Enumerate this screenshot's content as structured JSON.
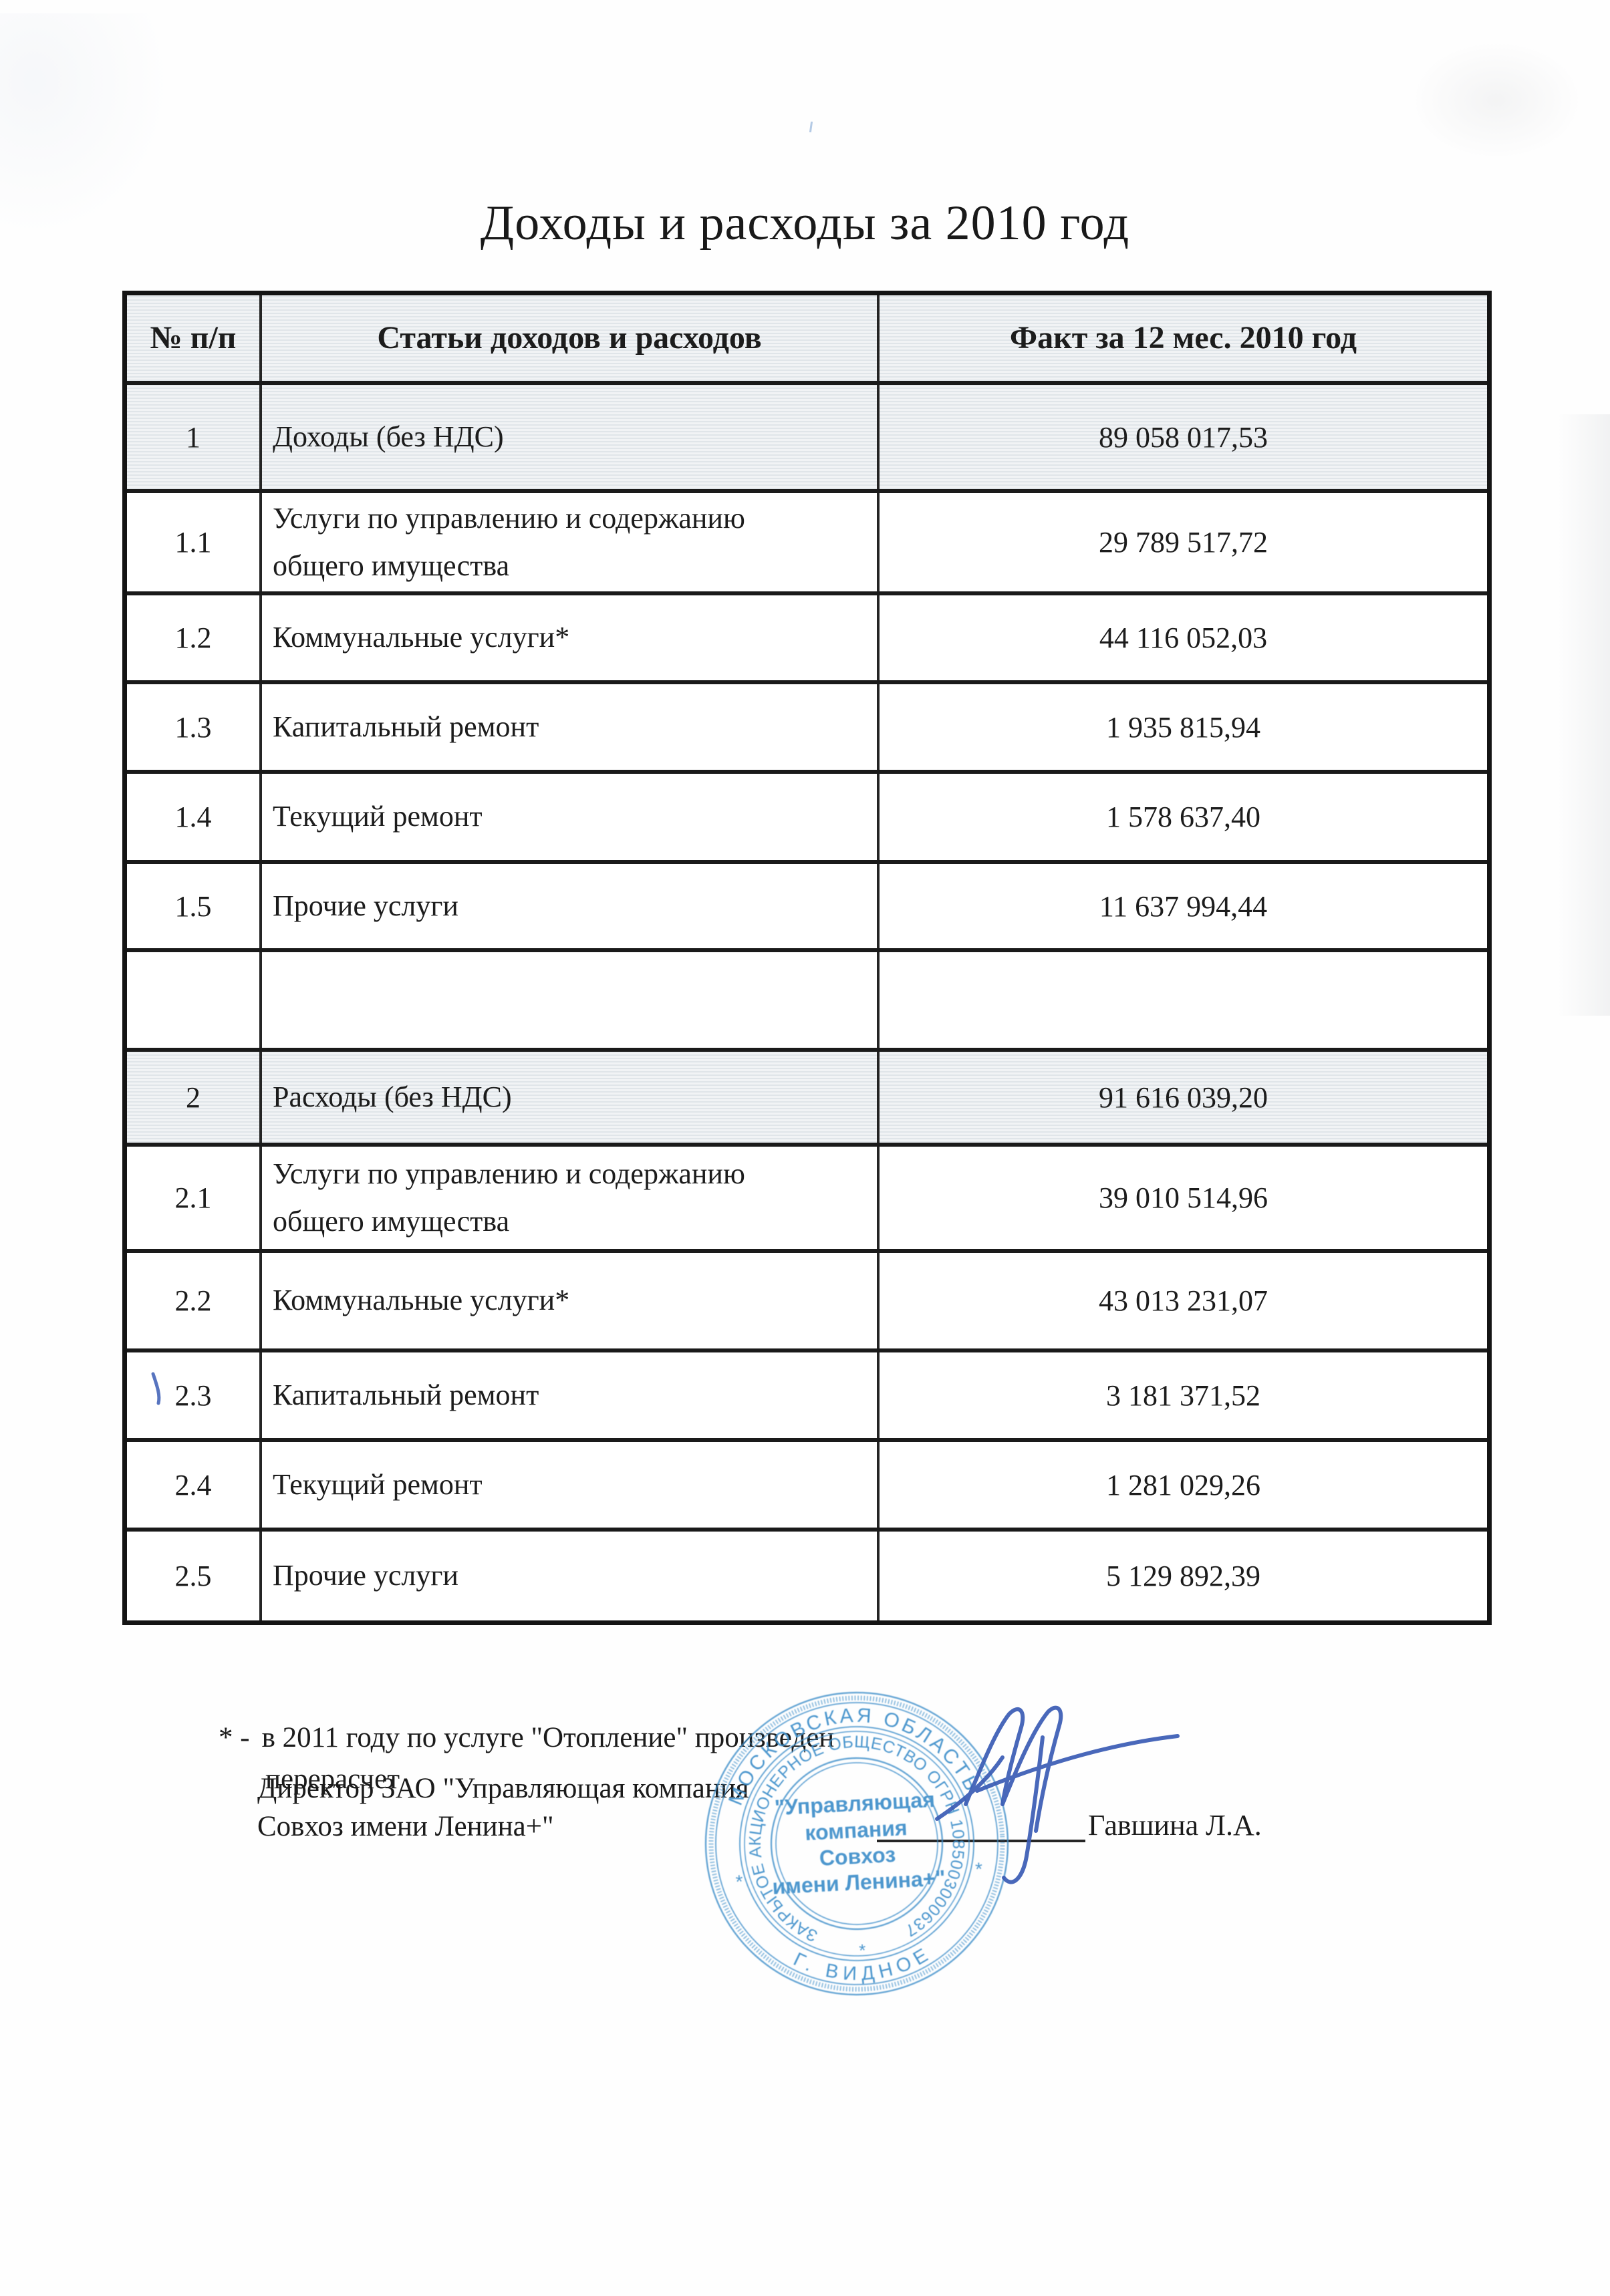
{
  "page": {
    "title": "Доходы и расходы за 2010 год"
  },
  "table": {
    "headers": [
      "№ п/п",
      "Статьи доходов и расходов",
      "Факт за 12 мес. 2010 год"
    ],
    "rows": [
      {
        "num": "1",
        "label": "Доходы (без НДС)",
        "value": "89 058 017,53",
        "section": true
      },
      {
        "num": "1.1",
        "label": "Услуги по управлению и содержанию общего имущества",
        "value": "29 789 517,72",
        "section": false
      },
      {
        "num": "1.2",
        "label": "Коммунальные услуги*",
        "value": "44 116 052,03",
        "section": false
      },
      {
        "num": "1.3",
        "label": "Капитальный ремонт",
        "value": "1 935 815,94",
        "section": false
      },
      {
        "num": "1.4",
        "label": "Текущий ремонт",
        "value": "1 578 637,40",
        "section": false
      },
      {
        "num": "1.5",
        "label": "Прочие услуги",
        "value": "11 637 994,44",
        "section": false
      },
      {
        "num": "",
        "label": "",
        "value": "",
        "section": false
      },
      {
        "num": "2",
        "label": "Расходы (без НДС)",
        "value": "91 616 039,20",
        "section": true
      },
      {
        "num": "2.1",
        "label": "Услуги по управлению и содержанию общего имущества",
        "value": "39 010 514,96",
        "section": false
      },
      {
        "num": "2.2",
        "label": "Коммунальные услуги*",
        "value": "43 013 231,07",
        "section": false
      },
      {
        "num": "2.3",
        "label": "Капитальный ремонт",
        "value": "3 181 371,52",
        "section": false
      },
      {
        "num": "2.4",
        "label": "Текущий ремонт",
        "value": "1 281 029,26",
        "section": false
      },
      {
        "num": "2.5",
        "label": "Прочие услуги",
        "value": "5 129 892,39",
        "section": false
      }
    ]
  },
  "footnote": {
    "marker": "* -",
    "line1": "в 2011 году по услуге \"Отопление\" произведен",
    "line2": "перерасчет"
  },
  "signature": {
    "line1": "Директор ЗАО \"Управляющая компания",
    "line2": "Совхоз имени Ленина+\"",
    "name": "Гавшина Л.А.",
    "ink_color": "#3a5cb5"
  },
  "stamp": {
    "ring_outer_top": "МОСКОВСКАЯ  ОБЛАСТЬ",
    "ring_outer_bottom": "Г. ВИДНОЕ",
    "ring_inner": "ЗАКРЫТОЕ АКЦИОНЕРНОЕ ОБЩЕСТВО  ОГРН 1085003000637",
    "center_lines": [
      "\"Управляющая",
      "компания",
      "Совхоз",
      "имени Ленина+\""
    ],
    "separator": "*",
    "ink_color": "#3f8fca"
  }
}
